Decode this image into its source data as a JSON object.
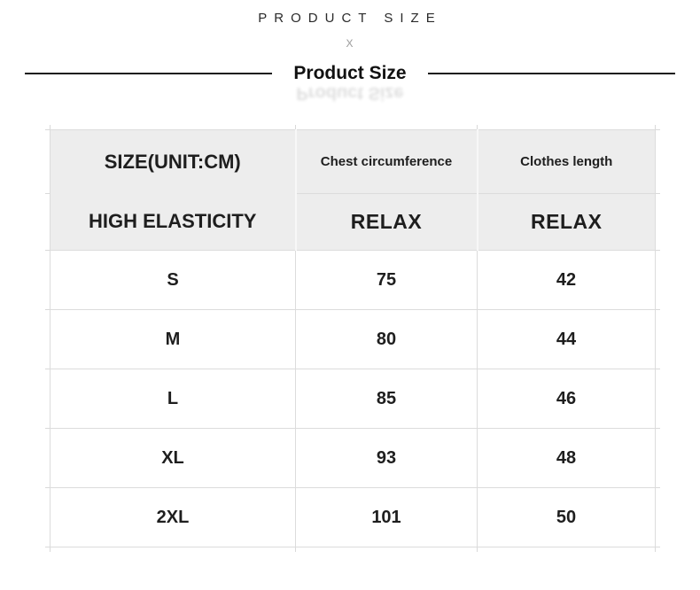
{
  "header": {
    "eyebrow": "PRODUCT SIZE",
    "divider_mark": "X",
    "title": "Product Size"
  },
  "chart_data": {
    "type": "table",
    "title": "Product Size",
    "columns": [
      "SIZE(UNIT:CM)",
      "Chest circumference",
      "Clothes length"
    ],
    "fit_row": [
      "HIGH ELASTICITY",
      "RELAX",
      "RELAX"
    ],
    "rows": [
      [
        "S",
        "75",
        "42"
      ],
      [
        "M",
        "80",
        "44"
      ],
      [
        "L",
        "85",
        "46"
      ],
      [
        "XL",
        "93",
        "48"
      ],
      [
        "2XL",
        "101",
        "50"
      ]
    ]
  },
  "colors": {
    "header_cell_bg": "#ededed",
    "grid_border": "#dcdcdc",
    "header_light_separator": "#f7f7f7",
    "text": "#1e1e1e",
    "title_rule": "#1a1a1a",
    "x_mark": "#9a9a9a"
  }
}
